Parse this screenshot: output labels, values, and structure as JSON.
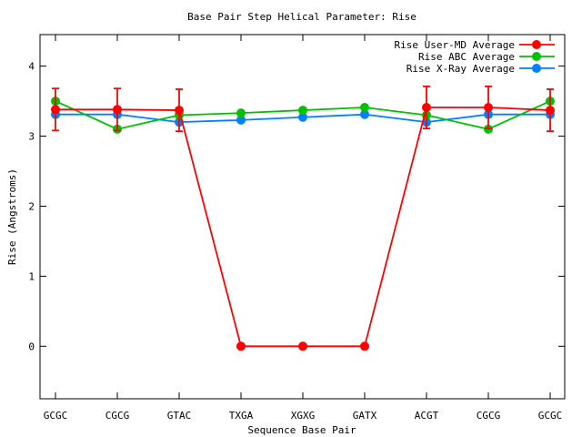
{
  "chart_data": {
    "type": "line",
    "title": "Base Pair Step Helical Parameter: Rise",
    "xlabel": "Sequence Base Pair",
    "ylabel": "Rise (Angstroms)",
    "categories": [
      "GCGC",
      "CGCG",
      "GTAC",
      "TXGA",
      "XGXG",
      "GATX",
      "ACGT",
      "CGCG",
      "GCGC"
    ],
    "ylim": [
      -0.75,
      4.45
    ],
    "yticks": [
      0,
      1,
      2,
      3,
      4
    ],
    "legend_position": "top-right",
    "grid": false,
    "series": [
      {
        "name": "Rise User-MD Average",
        "color": "#ff0000",
        "values": [
          3.38,
          3.38,
          3.37,
          0,
          0,
          0,
          3.41,
          3.41,
          3.37
        ],
        "error": [
          0.3,
          0.3,
          0.3,
          null,
          null,
          null,
          0.3,
          0.3,
          0.3
        ]
      },
      {
        "name": "Rise ABC Average",
        "color": "#00c000",
        "values": [
          3.5,
          3.1,
          3.3,
          3.33,
          3.37,
          3.41,
          3.3,
          3.1,
          3.5
        ]
      },
      {
        "name": "Rise X-Ray Average",
        "color": "#0080ff",
        "values": [
          3.31,
          3.31,
          3.2,
          3.23,
          3.27,
          3.31,
          3.2,
          3.31,
          3.31
        ]
      }
    ]
  }
}
